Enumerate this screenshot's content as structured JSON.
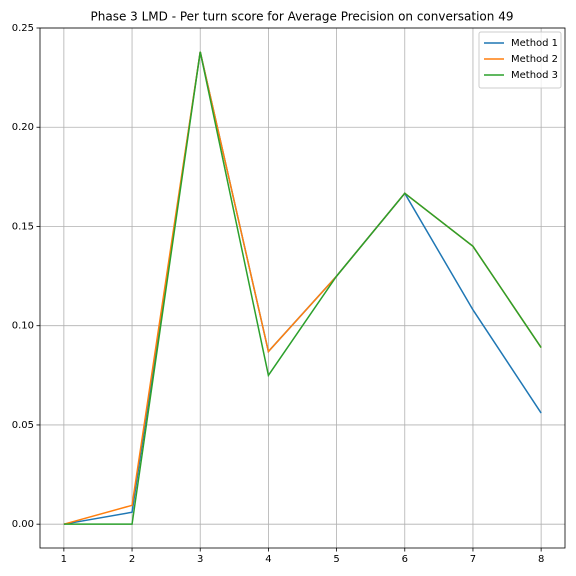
{
  "chart_data": {
    "type": "line",
    "title": "Phase 3 LMD - Per turn score for Average Precision on conversation 49",
    "x": [
      1,
      2,
      3,
      4,
      5,
      6,
      7,
      8
    ],
    "series": [
      {
        "name": "Method 1",
        "color": "#1f77b4",
        "values": [
          0,
          0.006,
          0.238,
          0.087,
          0.125,
          0.1667,
          0.108,
          0.056
        ]
      },
      {
        "name": "Method 2",
        "color": "#ff7f0e",
        "values": [
          0,
          0.0095,
          0.238,
          0.087,
          0.125,
          0.1667,
          0.14,
          0.089
        ]
      },
      {
        "name": "Method 3",
        "color": "#2ca02c",
        "values": [
          0,
          0,
          0.238,
          0.075,
          0.125,
          0.1667,
          0.14,
          0.089
        ]
      }
    ],
    "xlim": [
      0.65,
      8.35
    ],
    "ylim": [
      -0.012,
      0.25
    ],
    "xticks": [
      1,
      2,
      3,
      4,
      5,
      6,
      7,
      8
    ],
    "yticks": [
      {
        "value": 0,
        "label": "0.00"
      },
      0.05,
      {
        "value": 0.1,
        "label": "0.10"
      },
      0.15,
      {
        "value": 0.2,
        "label": "0.20"
      },
      0.25
    ],
    "grid": true,
    "legend": "upper-right"
  }
}
